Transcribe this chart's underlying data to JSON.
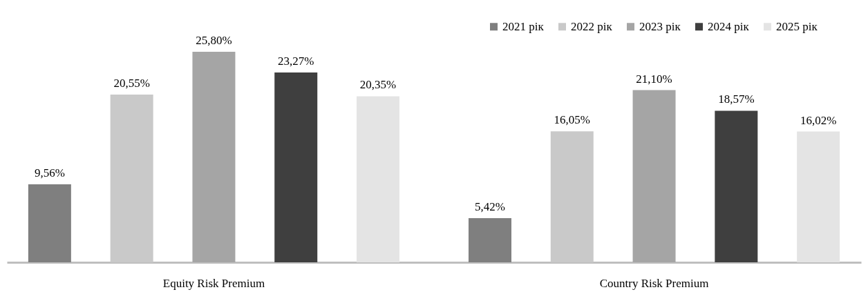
{
  "chart_data": {
    "type": "bar",
    "categories": [
      "Equity Risk Premium",
      "Country Risk Premium"
    ],
    "series": [
      {
        "name": "2021 рік",
        "color": "#7f7f7f",
        "values": [
          9.56,
          5.42
        ],
        "value_labels": [
          "9,56%",
          "5,42%"
        ]
      },
      {
        "name": "2022 рік",
        "color": "#c9c9c9",
        "values": [
          20.55,
          16.05
        ],
        "value_labels": [
          "20,55%",
          "16,05%"
        ]
      },
      {
        "name": "2023 рік",
        "color": "#a5a5a5",
        "values": [
          25.8,
          21.1
        ],
        "value_labels": [
          "25,80%",
          "21,10%"
        ]
      },
      {
        "name": "2024 рік",
        "color": "#3f3f3f",
        "values": [
          23.27,
          18.57
        ],
        "value_labels": [
          "23,27%",
          "18,57%"
        ]
      },
      {
        "name": "2025 рік",
        "color": "#e4e4e4",
        "values": [
          20.35,
          16.02
        ],
        "value_labels": [
          "20,35%",
          "16,02%"
        ]
      }
    ],
    "legend": "top right"
  }
}
